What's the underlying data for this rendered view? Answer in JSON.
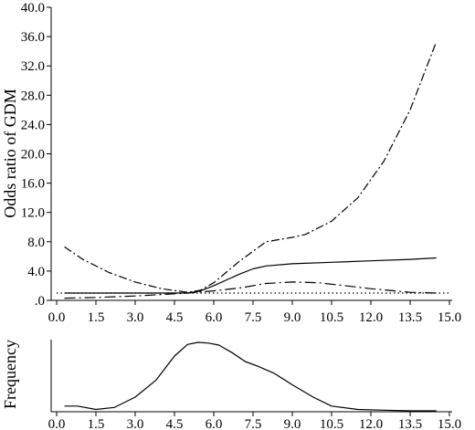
{
  "chart_data": [
    {
      "type": "line",
      "ylabel": "Odds ratio of GDM",
      "xlim": [
        0,
        15
      ],
      "ylim": [
        0,
        40
      ],
      "x_ticks": [
        "0.0",
        "1.5",
        "3.0",
        "4.5",
        "6.0",
        "7.5",
        "9.0",
        "10.5",
        "12.0",
        "13.5",
        "15.0"
      ],
      "x_tick_values": [
        0,
        1.5,
        3,
        4.5,
        6,
        7.5,
        9,
        10.5,
        12,
        13.5,
        15
      ],
      "y_ticks": [
        ".0",
        "4.0",
        "8.0",
        "12.0",
        "16.0",
        "20.0",
        "24.0",
        "28.0",
        "32.0",
        "36.0",
        "40.0"
      ],
      "y_tick_values": [
        0,
        4,
        8,
        12,
        16,
        20,
        24,
        28,
        32,
        36,
        40
      ],
      "grid": false,
      "series": [
        {
          "style": "solid",
          "color": "#000000",
          "x": [
            0.3,
            2.0,
            3.5,
            4.5,
            5.0,
            5.5,
            6.0,
            6.5,
            7.0,
            7.5,
            8.0,
            9.0,
            10.5,
            12.0,
            13.5,
            14.5
          ],
          "y": [
            1.0,
            1.0,
            1.0,
            1.0,
            1.0,
            1.3,
            2.0,
            2.8,
            3.6,
            4.3,
            4.7,
            5.0,
            5.2,
            5.4,
            5.6,
            5.8
          ]
        },
        {
          "style": "dash-dot-upper",
          "color": "#000000",
          "x": [
            0.3,
            1.0,
            2.0,
            3.0,
            4.0,
            5.0,
            5.5,
            6.0,
            7.0,
            8.0,
            9.0,
            9.5,
            10.5,
            11.5,
            12.5,
            13.5,
            14.5
          ],
          "y": [
            7.3,
            5.6,
            3.8,
            2.5,
            1.6,
            1.1,
            1.4,
            2.4,
            5.4,
            8.0,
            8.6,
            9.0,
            10.8,
            14.0,
            19.0,
            26.0,
            35.3
          ]
        },
        {
          "style": "dash-dot-lower",
          "color": "#000000",
          "x": [
            0.3,
            1.5,
            3.0,
            4.5,
            5.0,
            6.0,
            7.0,
            8.0,
            9.0,
            10.0,
            11.0,
            12.0,
            13.5,
            14.5
          ],
          "y": [
            0.3,
            0.4,
            0.6,
            0.9,
            1.0,
            1.3,
            1.7,
            2.3,
            2.5,
            2.4,
            2.0,
            1.6,
            1.1,
            1.0
          ]
        },
        {
          "style": "dotted",
          "color": "#000000",
          "x": [
            0.0,
            15.0
          ],
          "y": [
            1.0,
            1.0
          ]
        }
      ]
    },
    {
      "type": "area",
      "ylabel": "Frequency",
      "xlim": [
        0,
        15
      ],
      "x_ticks": [
        "0.0",
        "1.5",
        "3.0",
        "4.5",
        "6.0",
        "7.5",
        "9.0",
        "10.5",
        "12.0",
        "13.5",
        "15.0"
      ],
      "x_tick_values": [
        0,
        1.5,
        3,
        4.5,
        6,
        7.5,
        9,
        10.5,
        12,
        13.5,
        15
      ],
      "grid": false,
      "series": [
        {
          "style": "solid",
          "color": "#000000",
          "x": [
            0.3,
            0.8,
            1.5,
            2.2,
            3.0,
            3.8,
            4.5,
            5.0,
            5.4,
            5.8,
            6.2,
            6.7,
            7.2,
            7.7,
            8.3,
            9.0,
            9.8,
            10.5,
            11.5,
            12.5,
            13.5,
            14.5
          ],
          "y": [
            0.07,
            0.07,
            0.02,
            0.05,
            0.2,
            0.45,
            0.8,
            0.97,
            1.0,
            0.99,
            0.96,
            0.85,
            0.72,
            0.65,
            0.55,
            0.38,
            0.2,
            0.07,
            0.02,
            0.01,
            0.0,
            0.0
          ]
        }
      ]
    }
  ]
}
